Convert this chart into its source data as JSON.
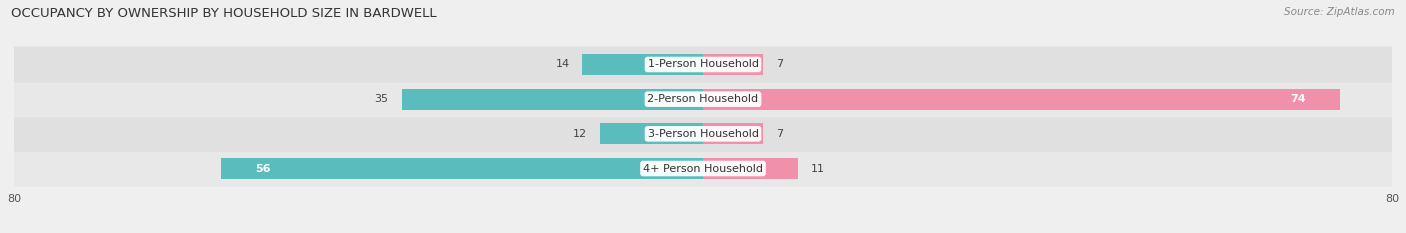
{
  "title": "OCCUPANCY BY OWNERSHIP BY HOUSEHOLD SIZE IN BARDWELL",
  "source": "Source: ZipAtlas.com",
  "categories": [
    "1-Person Household",
    "2-Person Household",
    "3-Person Household",
    "4+ Person Household"
  ],
  "owner_values": [
    14,
    35,
    12,
    56
  ],
  "renter_values": [
    7,
    74,
    7,
    11
  ],
  "owner_color": "#5bbcbd",
  "renter_color": "#f090aa",
  "background_color": "#efefef",
  "row_colors": [
    "#e8e8e8",
    "#e0e0e0",
    "#e8e8e8",
    "#e0e0e0"
  ],
  "axis_max": 80,
  "label_fontsize": 8.0,
  "title_fontsize": 9.5,
  "bar_height": 0.6
}
